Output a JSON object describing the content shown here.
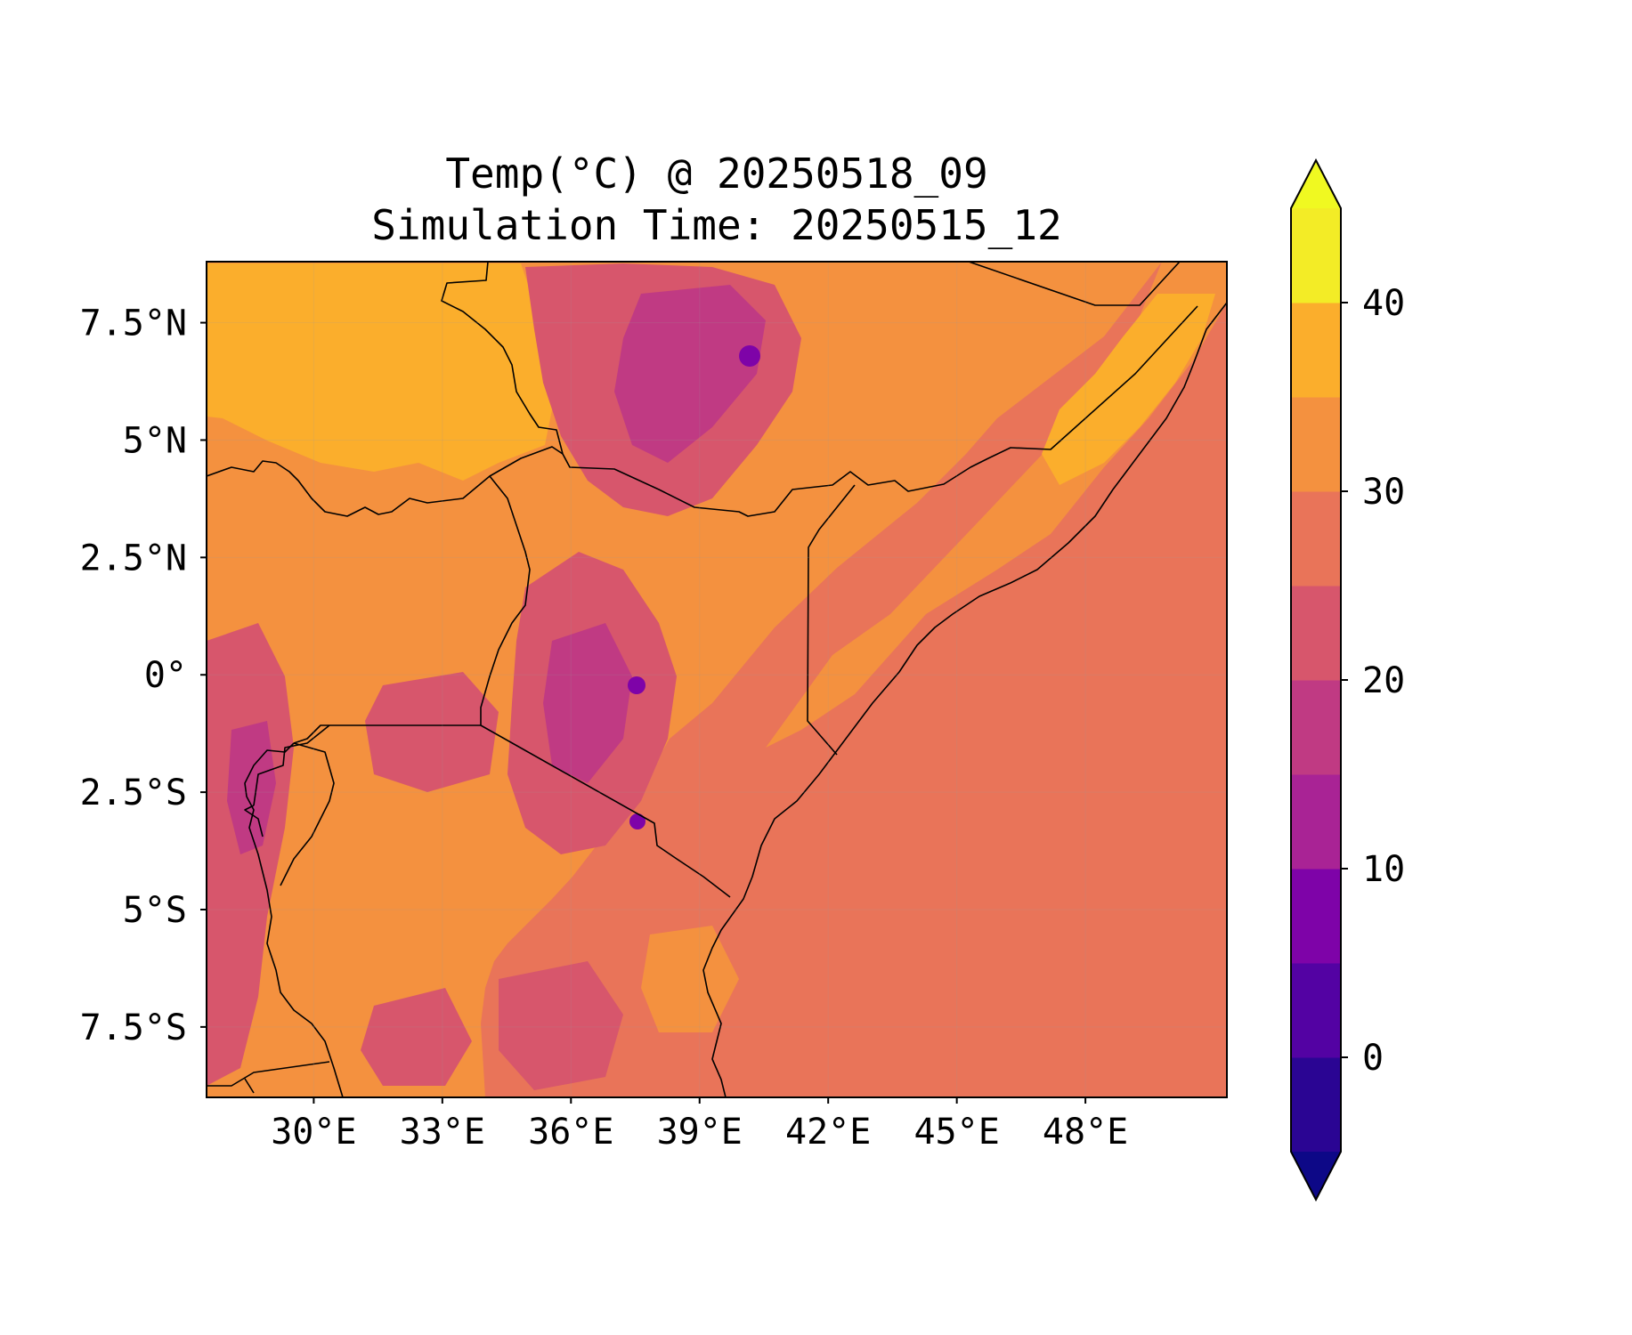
{
  "title": {
    "line1": "Temp(°C) @ 20250518_09",
    "line2": "Simulation Time: 20250515_12"
  },
  "map": {
    "lon_range": [
      27.5,
      51.3
    ],
    "lat_range": [
      -9.0,
      8.8
    ],
    "lon_ticks": [
      30,
      33,
      36,
      39,
      42,
      45,
      48
    ],
    "lat_ticks": [
      7.5,
      5,
      2.5,
      0,
      -2.5,
      -5,
      -7.5
    ],
    "lon_tick_labels": [
      "30°E",
      "33°E",
      "36°E",
      "39°E",
      "42°E",
      "45°E",
      "48°E"
    ],
    "lat_tick_labels": [
      "7.5°N",
      "5°N",
      "2.5°N",
      "0°",
      "2.5°S",
      "5°S",
      "7.5°S"
    ],
    "ocean_color": "#e97459",
    "land_base_color": "#f4913f",
    "hot_color": "#fbae2c",
    "cool_color": "#d7566c"
  },
  "colorbar": {
    "tick_values": [
      0,
      10,
      20,
      30,
      40
    ],
    "tick_labels": [
      "0",
      "10",
      "20",
      "30",
      "40"
    ],
    "range": [
      -5,
      45
    ],
    "extend": "both",
    "under_color": "#0d0887",
    "over_color": "#f0f921",
    "levels": [
      {
        "from": -5,
        "to": 0,
        "color": "#2a0593"
      },
      {
        "from": 0,
        "to": 5,
        "color": "#5302a3"
      },
      {
        "from": 5,
        "to": 10,
        "color": "#7e03a8"
      },
      {
        "from": 10,
        "to": 15,
        "color": "#a92395"
      },
      {
        "from": 15,
        "to": 20,
        "color": "#c03a83"
      },
      {
        "from": 20,
        "to": 25,
        "color": "#d7566c"
      },
      {
        "from": 25,
        "to": 30,
        "color": "#e97459"
      },
      {
        "from": 30,
        "to": 35,
        "color": "#f4913f"
      },
      {
        "from": 35,
        "to": 40,
        "color": "#fbae2c"
      },
      {
        "from": 40,
        "to": 45,
        "color": "#f3ec26"
      }
    ]
  }
}
